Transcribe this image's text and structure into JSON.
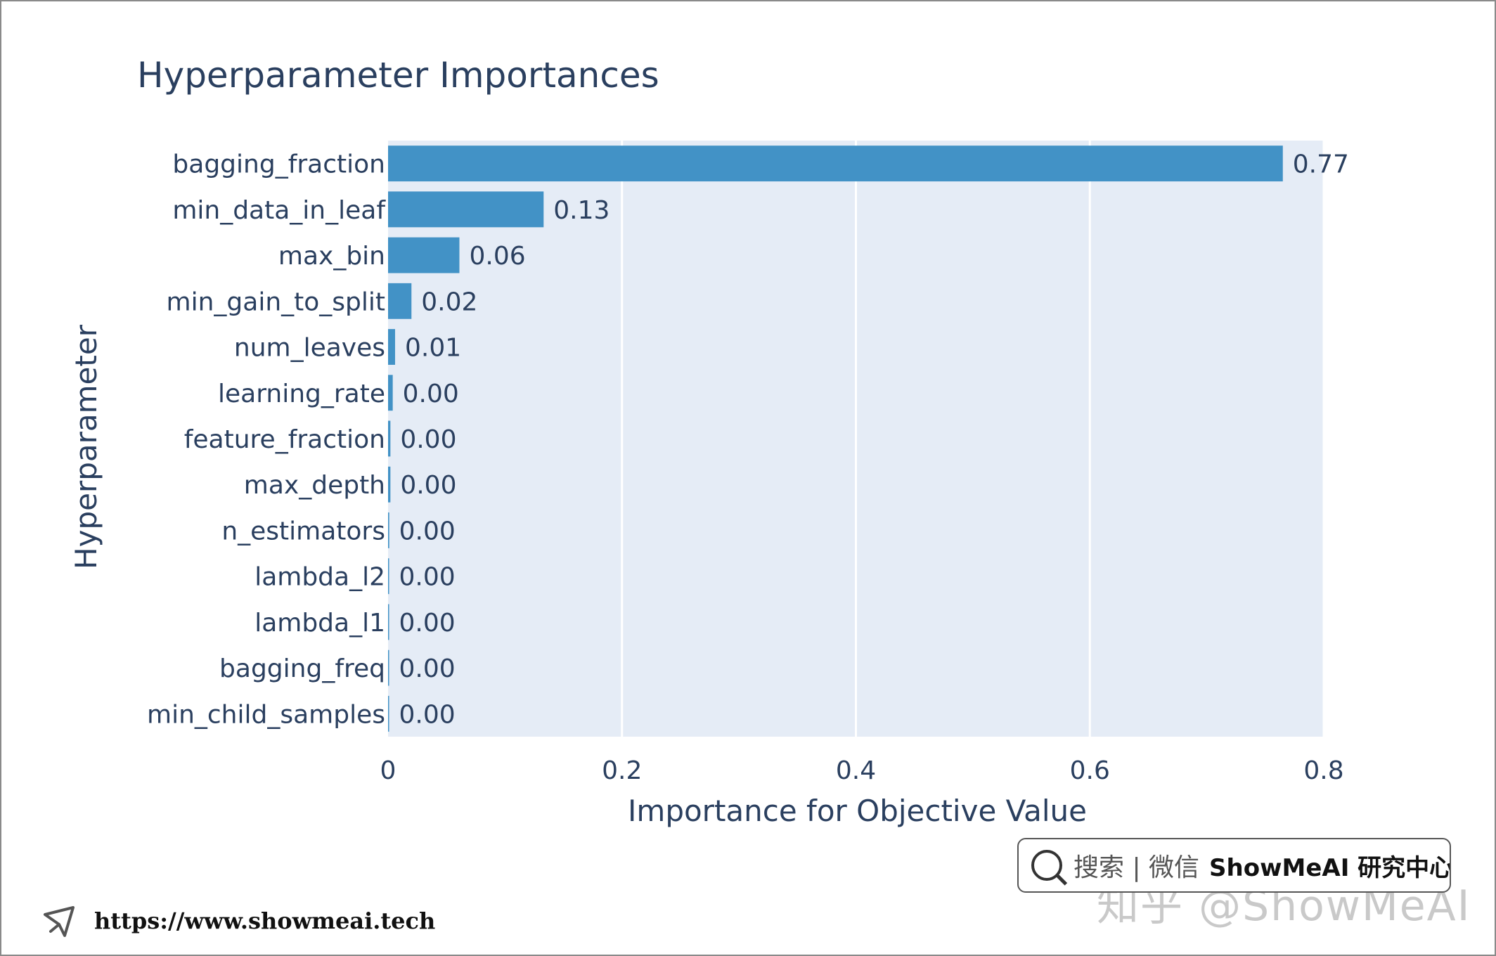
{
  "chart_data": {
    "type": "bar",
    "orientation": "horizontal",
    "title": "Hyperparameter Importances",
    "xlabel": "Importance for Objective Value",
    "ylabel": "Hyperparameter",
    "xlim": [
      0,
      0.8
    ],
    "xticks": [
      "0",
      "0.2",
      "0.4",
      "0.6",
      "0.8"
    ],
    "grid": true,
    "categories": [
      "bagging_fraction",
      "min_data_in_leaf",
      "max_bin",
      "min_gain_to_split",
      "num_leaves",
      "learning_rate",
      "feature_fraction",
      "max_depth",
      "n_estimators",
      "lambda_l2",
      "lambda_l1",
      "bagging_freq",
      "min_child_samples"
    ],
    "values": [
      0.765,
      0.133,
      0.061,
      0.02,
      0.006,
      0.004,
      0.002,
      0.002,
      0.001,
      0.0007,
      0.0005,
      0.0003,
      0.0002
    ],
    "value_labels": [
      "0.77",
      "0.13",
      "0.06",
      "0.02",
      "0.01",
      "0.00",
      "0.00",
      "0.00",
      "0.00",
      "0.00",
      "0.00",
      "0.00",
      "0.00"
    ],
    "bar_color": "#4292c6",
    "plot_bg": "#e5ecf6",
    "text_color": "#2a3f5f"
  },
  "watermark": {
    "search_icon": "search-icon",
    "search_text": "搜索 | 微信",
    "brand": "ShowMeAI 研究中心",
    "ghost_text": "知乎 @ShowMeAI"
  },
  "footer": {
    "icon": "cursor-icon",
    "url": "https://www.showmeai.tech"
  }
}
